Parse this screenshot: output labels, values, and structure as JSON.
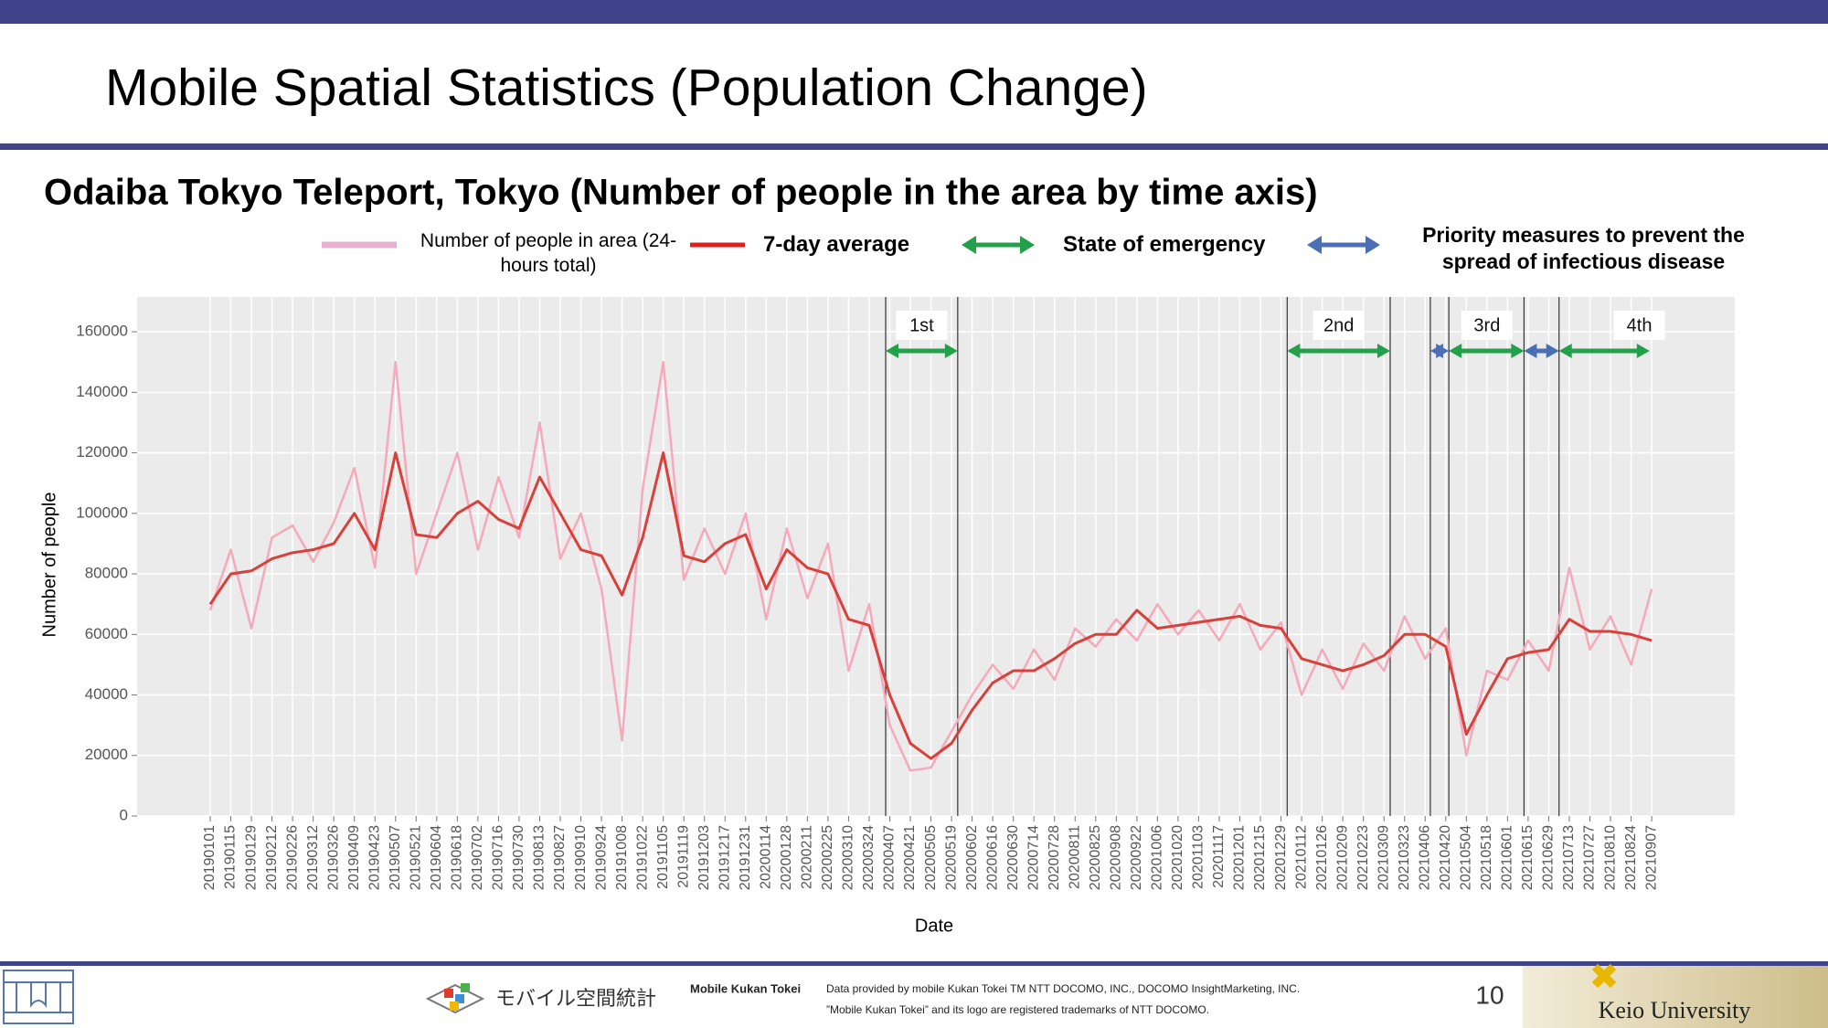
{
  "header": {
    "title": "Mobile Spatial Statistics (Population Change)"
  },
  "chart_data": {
    "type": "line",
    "title": "Odaiba Tokyo Teleport, Tokyo (Number of people in the area by time axis)",
    "x_label": "Date",
    "y_label": "Number of people",
    "categories": [
      "20190101",
      "20190115",
      "20190129",
      "20190212",
      "20190226",
      "20190312",
      "20190326",
      "20190409",
      "20190423",
      "20190507",
      "20190521",
      "20190604",
      "20190618",
      "20190702",
      "20190716",
      "20190730",
      "20190813",
      "20190827",
      "20190910",
      "20190924",
      "20191008",
      "20191022",
      "20191105",
      "20191119",
      "20191203",
      "20191217",
      "20191231",
      "20200114",
      "20200128",
      "20200211",
      "20200225",
      "20200310",
      "20200324",
      "20200407",
      "20200421",
      "20200505",
      "20200519",
      "20200602",
      "20200616",
      "20200630",
      "20200714",
      "20200728",
      "20200811",
      "20200825",
      "20200908",
      "20200922",
      "20201006",
      "20201020",
      "20201103",
      "20201117",
      "20201201",
      "20201215",
      "20201229",
      "20210112",
      "20210126",
      "20210209",
      "20210223",
      "20210309",
      "20210323",
      "20210406",
      "20210420",
      "20210504",
      "20210518",
      "20210601",
      "20210615",
      "20210629",
      "20210713",
      "20210727",
      "20210810",
      "20210824",
      "20210907"
    ],
    "series": [
      {
        "name": "Number of people in area (24-hours total)",
        "color": "#f5a9bb",
        "values": [
          68000,
          88000,
          62000,
          92000,
          96000,
          84000,
          97000,
          115000,
          82000,
          150000,
          80000,
          100000,
          120000,
          88000,
          112000,
          92000,
          130000,
          85000,
          100000,
          75000,
          25000,
          108000,
          150000,
          78000,
          95000,
          80000,
          100000,
          65000,
          95000,
          72000,
          90000,
          48000,
          70000,
          30000,
          15000,
          16000,
          28000,
          40000,
          50000,
          42000,
          55000,
          45000,
          62000,
          56000,
          65000,
          58000,
          70000,
          60000,
          68000,
          58000,
          70000,
          55000,
          64000,
          40000,
          55000,
          42000,
          57000,
          48000,
          66000,
          52000,
          62000,
          20000,
          48000,
          45000,
          58000,
          48000,
          82000,
          55000,
          66000,
          50000,
          75000
        ]
      },
      {
        "name": "7-day average",
        "color": "#d9403a",
        "values": [
          70000,
          80000,
          81000,
          85000,
          87000,
          88000,
          90000,
          100000,
          88000,
          120000,
          93000,
          92000,
          100000,
          104000,
          98000,
          95000,
          112000,
          100000,
          88000,
          86000,
          73000,
          92000,
          120000,
          86000,
          84000,
          90000,
          93000,
          75000,
          88000,
          82000,
          80000,
          65000,
          63000,
          40000,
          24000,
          19000,
          24000,
          35000,
          44000,
          48000,
          48000,
          52000,
          57000,
          60000,
          60000,
          68000,
          62000,
          63000,
          64000,
          65000,
          66000,
          63000,
          62000,
          52000,
          50000,
          48000,
          50000,
          53000,
          60000,
          60000,
          56000,
          27000,
          40000,
          52000,
          54000,
          55000,
          65000,
          61000,
          61000,
          60000,
          58000
        ]
      }
    ],
    "ylim": [
      0,
      171500
    ],
    "yticks": [
      0,
      20000,
      40000,
      60000,
      80000,
      100000,
      120000,
      140000,
      160000
    ],
    "grid": true,
    "annotations": {
      "emergency": "State of emergency",
      "priority": "Priority measures to prevent the spread of infectious disease",
      "periods": [
        "1st",
        "2nd",
        "3rd",
        "4th"
      ]
    }
  },
  "footer": {
    "logo_text": "モバイル空間統計",
    "brand": "Mobile Kukan Tokei",
    "credit_1": "Data provided by mobile Kukan Tokei TM NTT DOCOMO, INC., DOCOMO InsightMarketing, INC.",
    "credit_2": "”Mobile Kukan Tokei” and its logo are registered trademarks of NTT DOCOMO.",
    "page": "10",
    "university": "Keio University"
  }
}
